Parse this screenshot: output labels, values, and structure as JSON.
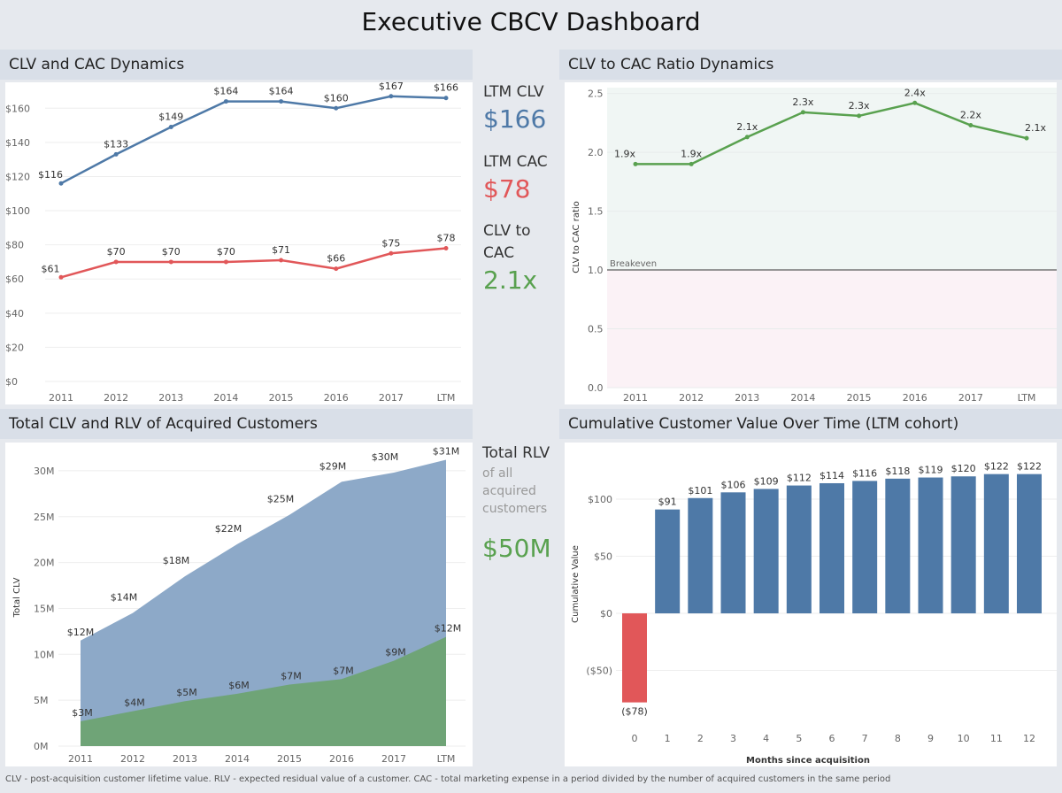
{
  "title": "Executive CBCV Dashboard",
  "panels": {
    "clv_cac": "CLV and CAC Dynamics",
    "ratio": "CLV to CAC Ratio Dynamics",
    "total": "Total CLV and RLV of Acquired Customers",
    "cumulative": "Cumulative Customer Value Over Time (LTM cohort)"
  },
  "kpi": {
    "ltm_clv_label": "LTM CLV",
    "ltm_clv_value": "$166",
    "ltm_cac_label": "LTM CAC",
    "ltm_cac_value": "$78",
    "ratio_label_1": "CLV to",
    "ratio_label_2": "CAC",
    "ratio_value": "2.1x",
    "rlv_label": "Total RLV",
    "rlv_sub_1": "of all",
    "rlv_sub_2": "acquired",
    "rlv_sub_3": "customers",
    "rlv_value": "$50M"
  },
  "colors": {
    "blue": "#4e79a7",
    "red": "#e15759",
    "green": "#59a14f",
    "area_blue": "#8da9c8",
    "area_green": "#6fa477"
  },
  "footer": "CLV - post-acquisition customer lifetime value. RLV - expected  residual value of a customer. CAC - total marketing expense in a period divided by the number of acquired customers in the same period",
  "chart_data": [
    {
      "type": "line",
      "title": "CLV and CAC Dynamics",
      "categories": [
        "2011",
        "2012",
        "2013",
        "2014",
        "2015",
        "2016",
        "2017",
        "LTM"
      ],
      "series": [
        {
          "values": [
            116,
            133,
            149,
            164,
            164,
            160,
            167,
            166
          ],
          "labels": [
            "$116",
            "$133",
            "$149",
            "$164",
            "$164",
            "$160",
            "$167",
            "$166"
          ]
        },
        {
          "values": [
            61,
            70,
            70,
            70,
            71,
            66,
            75,
            78
          ],
          "labels": [
            "$61",
            "$70",
            "$70",
            "$70",
            "$71",
            "$66",
            "$75",
            "$78"
          ]
        }
      ],
      "yticks": [
        "$0",
        "$20",
        "$40",
        "$60",
        "$80",
        "$100",
        "$120",
        "$140",
        "$160"
      ],
      "ylim": [
        0,
        170
      ]
    },
    {
      "type": "line",
      "title": "CLV to CAC Ratio Dynamics",
      "categories": [
        "2011",
        "2012",
        "2013",
        "2014",
        "2015",
        "2016",
        "2017",
        "LTM"
      ],
      "values": [
        1.9,
        1.9,
        2.13,
        2.34,
        2.31,
        2.42,
        2.23,
        2.12
      ],
      "labels": [
        "1.9x",
        "1.9x",
        "2.1x",
        "2.3x",
        "2.3x",
        "2.4x",
        "2.2x",
        "2.1x"
      ],
      "ylabel": "CLV to CAC ratio",
      "yticks": [
        "0.0",
        "0.5",
        "1.0",
        "1.5",
        "2.0",
        "2.5"
      ],
      "ylim": [
        0,
        2.55
      ],
      "reference_line": {
        "value": 1.0,
        "label": "Breakeven"
      }
    },
    {
      "type": "area",
      "title": "Total CLV and RLV of Acquired Customers",
      "categories": [
        "2011",
        "2012",
        "2013",
        "2014",
        "2015",
        "2016",
        "2017",
        "LTM"
      ],
      "series": [
        {
          "values": [
            11.5,
            14.5,
            18.5,
            22,
            25.2,
            28.8,
            29.8,
            31.2
          ],
          "labels": [
            "$12M",
            "$14M",
            "$18M",
            "$22M",
            "$25M",
            "$29M",
            "$30M",
            "$31M"
          ]
        },
        {
          "values": [
            2.7,
            3.8,
            4.9,
            5.7,
            6.7,
            7.3,
            9.3,
            11.9
          ],
          "labels": [
            "$3M",
            "$4M",
            "$5M",
            "$6M",
            "$7M",
            "$7M",
            "$9M",
            "$12M"
          ]
        }
      ],
      "ylabel": "Total CLV",
      "yticks": [
        "0M",
        "5M",
        "10M",
        "15M",
        "20M",
        "25M",
        "30M"
      ],
      "ylim": [
        0,
        32.5
      ]
    },
    {
      "type": "bar",
      "title": "Cumulative Customer Value Over Time (LTM cohort)",
      "categories": [
        "0",
        "1",
        "2",
        "3",
        "4",
        "5",
        "6",
        "7",
        "8",
        "9",
        "10",
        "11",
        "12"
      ],
      "values": [
        -78,
        91,
        101,
        106,
        109,
        112,
        114,
        116,
        118,
        119,
        120,
        122,
        122
      ],
      "labels": [
        "($78)",
        "$91",
        "$101",
        "$106",
        "$109",
        "$112",
        "$114",
        "$116",
        "$118",
        "$119",
        "$120",
        "$122",
        "$122"
      ],
      "xlabel": "Months since acquisition",
      "ylabel": "Cumulative Value",
      "yticks": [
        "($50)",
        "$0",
        "$50",
        "$100"
      ],
      "ylim": [
        -100,
        145
      ]
    }
  ]
}
